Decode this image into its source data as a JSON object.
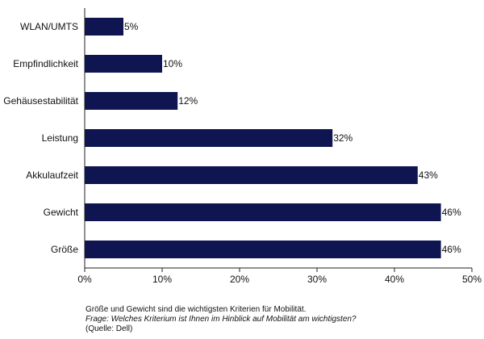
{
  "chart_data": {
    "type": "bar",
    "orientation": "horizontal",
    "categories": [
      "WLAN/UMTS",
      "Empfindlichkeit",
      "Gehäusestabilität",
      "Leistung",
      "Akkulaufzeit",
      "Gewicht",
      "Größe"
    ],
    "values": [
      5,
      10,
      12,
      32,
      43,
      46,
      46
    ],
    "value_labels": [
      "5%",
      "10%",
      "12%",
      "32%",
      "43%",
      "46%",
      "46%"
    ],
    "xlim": [
      0,
      50
    ],
    "xticks": [
      0,
      10,
      20,
      30,
      40,
      50
    ],
    "xtick_labels": [
      "0%",
      "10%",
      "20%",
      "30%",
      "40%",
      "50%"
    ],
    "grid": false,
    "bar_color": "#0f1550"
  },
  "caption": {
    "line1": "Größe und Gewicht sind die wichtigsten Kriterien für Mobilität.",
    "line2": "Frage: Welches Kriterium ist Ihnen im Hinblick auf Mobilität am wichtigsten?",
    "line3": "(Quelle: Dell)"
  }
}
